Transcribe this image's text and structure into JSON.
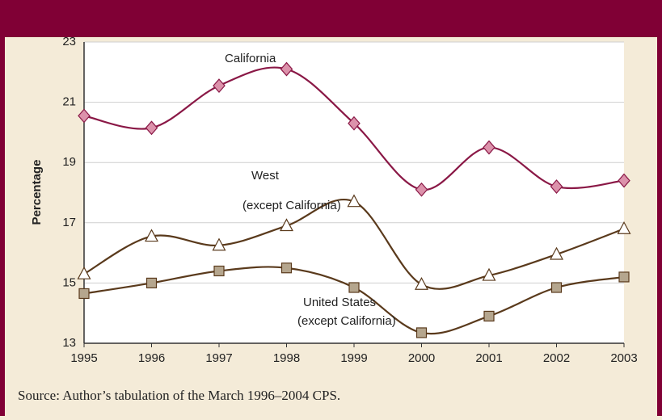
{
  "chart_data": {
    "type": "line",
    "y_label": "Percentage",
    "source": "Source: Author’s tabulation of the March 1996–2004 CPS.",
    "categories": [
      "1995",
      "1996",
      "1997",
      "1998",
      "1999",
      "2000",
      "2001",
      "2002",
      "2003"
    ],
    "ylim": [
      13,
      23
    ],
    "yticks": [
      13,
      15,
      17,
      19,
      21,
      23
    ],
    "grid": true,
    "series": [
      {
        "label": [
          "California"
        ],
        "color": "#8a1846",
        "marker": "diamond",
        "marker_color": "#dc92ab",
        "values": [
          20.55,
          20.15,
          21.55,
          22.1,
          20.3,
          18.1,
          19.5,
          18.2,
          18.4
        ]
      },
      {
        "label": [
          "West",
          "(except California)"
        ],
        "color": "#5a3a1c",
        "marker": "triangle",
        "marker_color": "#ffffff",
        "values": [
          15.3,
          16.55,
          16.25,
          16.9,
          17.7,
          14.95,
          15.25,
          15.95,
          16.8
        ]
      },
      {
        "label": [
          "United States",
          "(except California)"
        ],
        "color": "#5a3a1c",
        "marker": "square",
        "marker_color": "#b5a68e",
        "values": [
          14.65,
          15.0,
          15.4,
          15.5,
          14.85,
          13.35,
          13.9,
          14.85,
          15.2
        ]
      }
    ]
  }
}
